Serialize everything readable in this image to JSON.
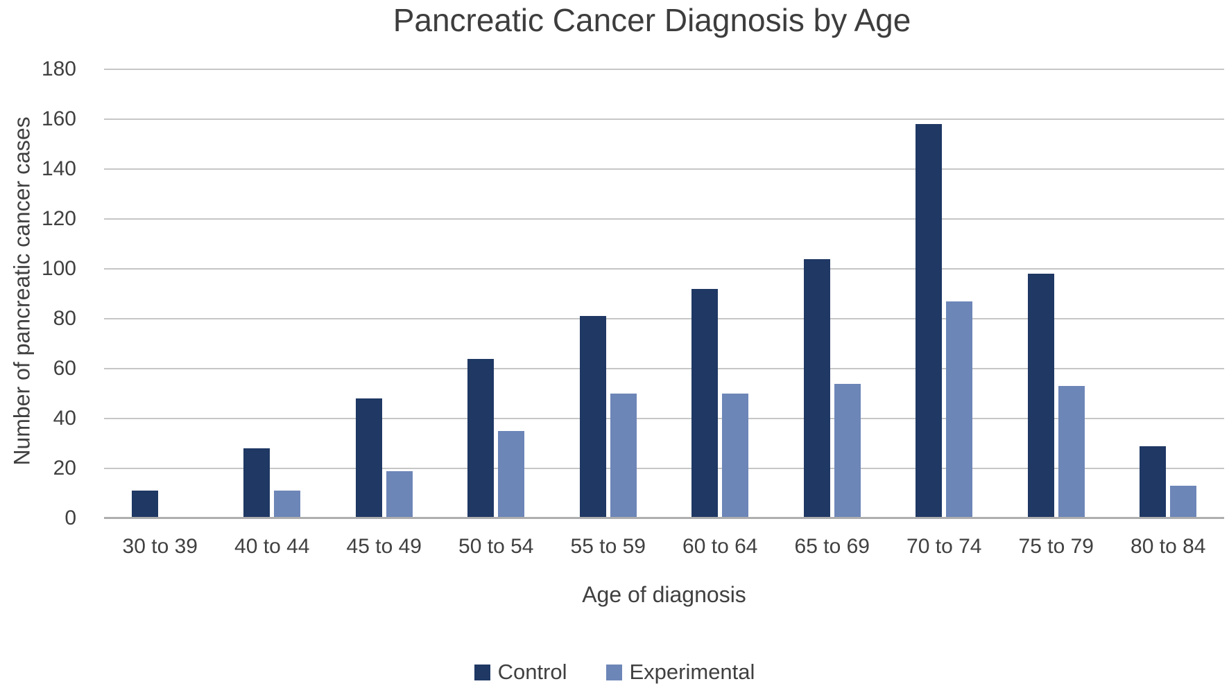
{
  "chart_data": {
    "type": "bar",
    "title": "Pancreatic Cancer Diagnosis by Age",
    "xlabel": "Age of diagnosis",
    "ylabel": "Number of pancreatic cancer cases",
    "categories": [
      "30 to 39",
      "40 to 44",
      "45 to 49",
      "50 to 54",
      "55 to 59",
      "60 to 64",
      "65 to 69",
      "70 to 74",
      "75 to 79",
      "80 to 84"
    ],
    "series": [
      {
        "name": "Control",
        "color": "#1F3864",
        "values": [
          11,
          28,
          48,
          64,
          81,
          92,
          104,
          158,
          98,
          29
        ]
      },
      {
        "name": "Experimental",
        "color": "#6D86B8",
        "values": [
          0,
          11,
          19,
          35,
          50,
          50,
          54,
          87,
          53,
          13
        ]
      }
    ],
    "ylim": [
      0,
      180
    ],
    "ytick_step": 20,
    "yticks": [
      0,
      20,
      40,
      60,
      80,
      100,
      120,
      140,
      160,
      180
    ],
    "grid": true,
    "legend_position": "bottom"
  },
  "colors": {
    "gridline": "#C6C6C6",
    "axis_line": "#AEAEAE",
    "text": "#404040",
    "title_text": "#3D3D3D",
    "background": "#FFFFFF"
  }
}
